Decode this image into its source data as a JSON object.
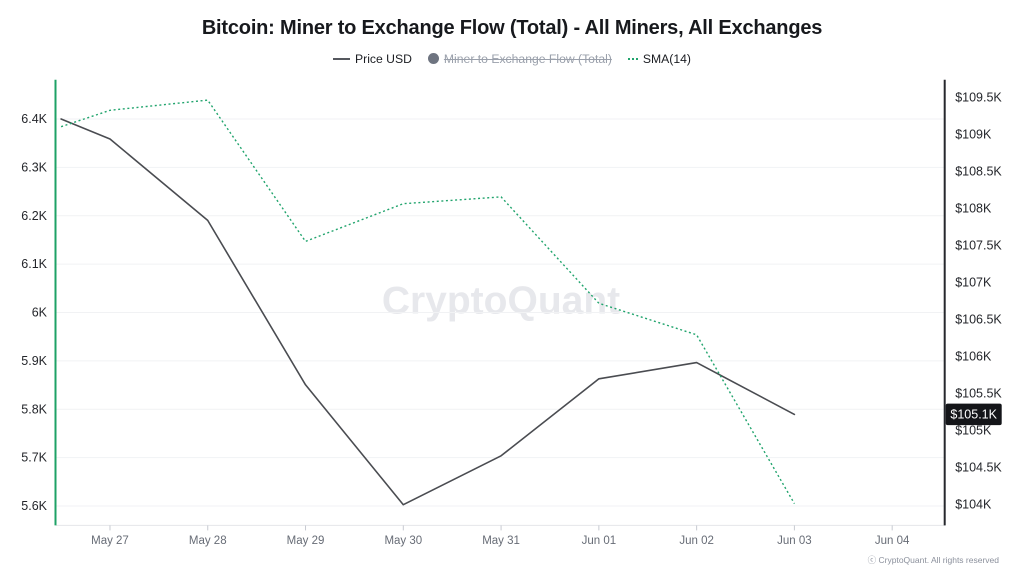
{
  "page": {
    "background": "#ffffff"
  },
  "header": {
    "title": "Bitcoin: Miner to Exchange Flow (Total) - All Miners, All Exchanges"
  },
  "legend": {
    "items": [
      {
        "label": "Price USD",
        "marker": "line",
        "color": "#55585e",
        "disabled": false
      },
      {
        "label": "Miner to Exchange Flow (Total)",
        "marker": "circle",
        "color": "#6e7480",
        "disabled": true
      },
      {
        "label": "SMA(14)",
        "marker": "dotted-line",
        "color": "#21a46d",
        "disabled": false
      }
    ]
  },
  "watermark": {
    "text": "CryptoQuant",
    "color": "#e7e8ec"
  },
  "footer": {
    "text": "ⓒ CryptoQuant. All rights reserved"
  },
  "price_badge": {
    "text": "$105.1K",
    "background": "#141519",
    "color": "#ffffff"
  },
  "colors": {
    "price_line": "#4a4c51",
    "sma_line": "#21a46d",
    "left_axis_line": "#1ea266",
    "right_axis_line": "#26282d",
    "grid_line": "#f1f2f4",
    "x_axis_line": "#e4e6ea",
    "x_tick": "#c7cad1",
    "y_label": "#24262b",
    "x_label": "#676c76"
  },
  "chart_data": {
    "type": "line",
    "title": "Bitcoin: Miner to Exchange Flow (Total) - All Miners, All Exchanges",
    "legend_position": "top",
    "grid": "horizontal-only",
    "x_axis": {
      "tick_labels": [
        "May 27",
        "May 28",
        "May 29",
        "May 30",
        "May 31",
        "Jun 01",
        "Jun 02",
        "Jun 03",
        "Jun 04"
      ],
      "tick_t": [
        1,
        2,
        3,
        4,
        5,
        6,
        7,
        8,
        9
      ],
      "domain": [
        0.448,
        9.532
      ]
    },
    "left_axis": {
      "tick_labels": [
        "6.4K",
        "6.3K",
        "6.2K",
        "6.1K",
        "6K",
        "5.9K",
        "5.8K",
        "5.7K",
        "5.6K"
      ],
      "tick_values": [
        6.4,
        6.3,
        6.2,
        6.1,
        6.0,
        5.9,
        5.8,
        5.7,
        5.6
      ],
      "min": 5.56,
      "max": 6.481
    },
    "right_axis": {
      "tick_labels": [
        "$109.5K",
        "$109K",
        "$108.5K",
        "$108K",
        "$107.5K",
        "$107K",
        "$106.5K",
        "$106K",
        "$105.5K",
        "$105K",
        "$104.5K",
        "$104K"
      ],
      "tick_values": [
        109.5,
        109,
        108.5,
        108,
        107.5,
        107,
        106.5,
        106,
        105.5,
        105,
        104.5,
        104
      ],
      "min": 103.72,
      "max": 109.74
    },
    "series": [
      {
        "name": "Price USD",
        "axis": "right",
        "style": "solid",
        "t": [
          0.5,
          1,
          2,
          3,
          4,
          5,
          6,
          7,
          8
        ],
        "values": [
          109.21,
          108.94,
          107.84,
          105.62,
          104.0,
          104.66,
          105.7,
          105.92,
          105.22
        ]
      },
      {
        "name": "SMA(14)",
        "axis": "left",
        "style": "dotted",
        "t": [
          0.5,
          1,
          2,
          3,
          4,
          5,
          6,
          7,
          8
        ],
        "values": [
          6.384,
          6.418,
          6.439,
          6.147,
          6.225,
          6.239,
          6.019,
          5.954,
          5.605
        ]
      }
    ],
    "last_price_label": "$105.1K"
  }
}
